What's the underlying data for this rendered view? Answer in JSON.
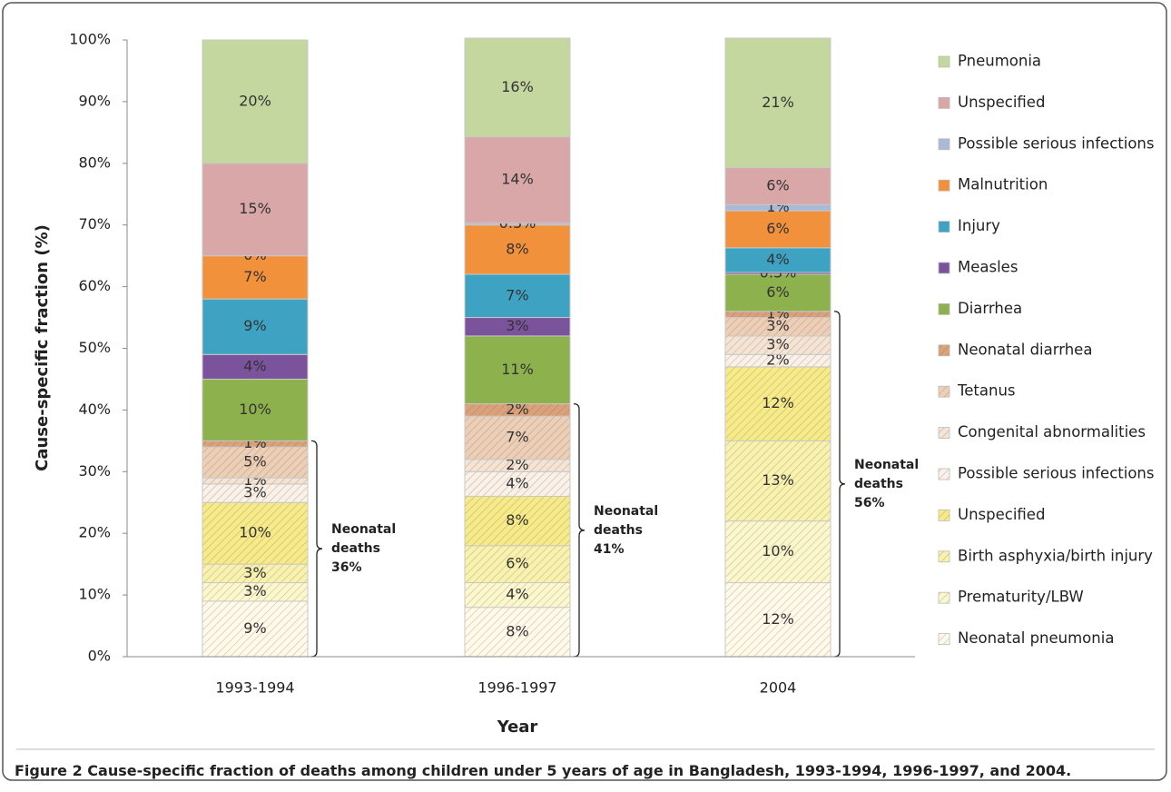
{
  "chart_data": {
    "type": "stacked-bar",
    "x_label": "Year",
    "y_label": "Cause-specific fraction (%)",
    "categories": [
      "1993-1994",
      "1996-1997",
      "2004"
    ],
    "ylim": [
      0,
      100
    ],
    "yticks": [
      {
        "value": 0,
        "label": "0%"
      },
      {
        "value": 10,
        "label": "10%"
      },
      {
        "value": 20,
        "label": "20%"
      },
      {
        "value": 30,
        "label": "30%"
      },
      {
        "value": 40,
        "label": "40%"
      },
      {
        "value": 50,
        "label": "50%"
      },
      {
        "value": 60,
        "label": "60%"
      },
      {
        "value": 70,
        "label": "70%"
      },
      {
        "value": 80,
        "label": "80%"
      },
      {
        "value": 90,
        "label": "90%"
      },
      {
        "value": 100,
        "label": "100%"
      }
    ],
    "grid": false,
    "legend_position": "right",
    "series": [
      {
        "name": "Neonatal pneumonia",
        "color": "#fffaeb",
        "hatch": true,
        "values": [
          9,
          8,
          12
        ],
        "value_labels": [
          "9%",
          "8%",
          "12%"
        ]
      },
      {
        "name": "Prematurity/LBW",
        "color": "#fbf8cf",
        "hatch": true,
        "values": [
          3,
          4,
          10
        ],
        "value_labels": [
          "3%",
          "4%",
          "10%"
        ]
      },
      {
        "name": "Birth asphyxia/birth injury",
        "color": "#f8f2b0",
        "hatch": true,
        "values": [
          3,
          6,
          13
        ],
        "value_labels": [
          "3%",
          "6%",
          "13%"
        ]
      },
      {
        "name": "Unspecified",
        "color": "#f6eb8a",
        "hatch": true,
        "values": [
          10,
          8,
          12
        ],
        "value_labels": [
          "10%",
          "8%",
          "12%"
        ]
      },
      {
        "name": "Possible serious infections",
        "color": "#f9f1ea",
        "hatch": true,
        "values": [
          3,
          4,
          2
        ],
        "value_labels": [
          "3%",
          "4%",
          "2%"
        ]
      },
      {
        "name": "Congenital abnormalities",
        "color": "#f4e4d6",
        "hatch": true,
        "values": [
          1,
          2,
          3
        ],
        "value_labels": [
          "1%",
          "2%",
          "3%"
        ]
      },
      {
        "name": "Tetanus",
        "color": "#eccfb8",
        "hatch": true,
        "values": [
          5,
          7,
          3
        ],
        "value_labels": [
          "5%",
          "7%",
          "3%"
        ]
      },
      {
        "name": "Neonatal diarrhea",
        "color": "#d9a27c",
        "hatch": true,
        "values": [
          1,
          2,
          1
        ],
        "value_labels": [
          "1%",
          "2%",
          "1%"
        ]
      },
      {
        "name": "Diarrhea",
        "color": "#8db14c",
        "hatch": false,
        "values": [
          10,
          11,
          6
        ],
        "value_labels": [
          "10%",
          "11%",
          "6%"
        ]
      },
      {
        "name": "Measles",
        "color": "#7b529c",
        "hatch": false,
        "values": [
          4,
          3,
          0.3
        ],
        "value_labels": [
          "4%",
          "3%",
          "0.3%"
        ]
      },
      {
        "name": "Injury",
        "color": "#3ea3c2",
        "hatch": false,
        "values": [
          9,
          7,
          4
        ],
        "value_labels": [
          "9%",
          "7%",
          "4%"
        ]
      },
      {
        "name": "Malnutrition",
        "color": "#f1913c",
        "hatch": false,
        "values": [
          7,
          8,
          6
        ],
        "value_labels": [
          "7%",
          "8%",
          "6%"
        ]
      },
      {
        "name": "Possible serious infections",
        "color": "#a9bad8",
        "hatch": false,
        "values": [
          0,
          0.3,
          1
        ],
        "value_labels": [
          "0%",
          "0.3%",
          "1%"
        ]
      },
      {
        "name": "Unspecified",
        "color": "#d9a7a7",
        "hatch": false,
        "values": [
          15,
          14,
          6
        ],
        "value_labels": [
          "15%",
          "14%",
          "6%"
        ]
      },
      {
        "name": "Pneumonia",
        "color": "#c4d79e",
        "hatch": false,
        "values": [
          20,
          16,
          21
        ],
        "value_labels": [
          "20%",
          "16%",
          "21%"
        ]
      }
    ],
    "annotations": [
      [
        "Neonatal",
        "deaths",
        "36%"
      ],
      [
        "Neonatal",
        "deaths",
        "41%"
      ],
      [
        "Neonatal",
        "deaths",
        "56%"
      ]
    ],
    "caption": {
      "label": "Figure 2",
      "text": "Cause-specific fraction of deaths among children under 5 years of age in Bangladesh, 1993-1994, 1996-1997, and 2004."
    }
  }
}
